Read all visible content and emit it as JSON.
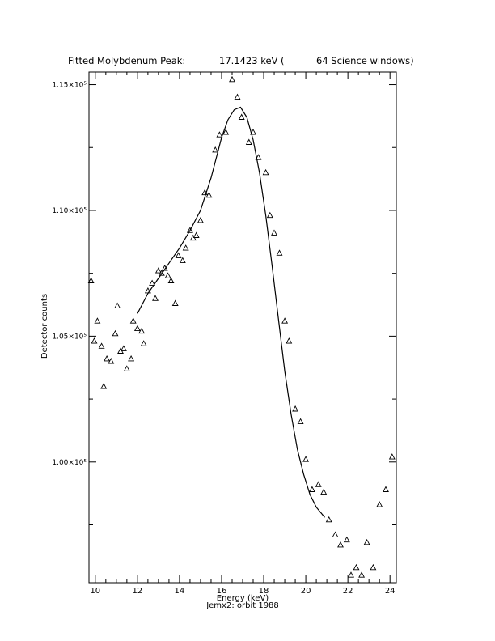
{
  "chart_data": {
    "type": "scatter",
    "title": {
      "prefix": "Fitted Molybdenum Peak:",
      "value": "17.1423 keV (",
      "suffix": "64 Science windows)"
    },
    "xlabel": "Energy (keV)",
    "ylabel": "Detector counts",
    "footer": "Jemx2: orbit 1988",
    "xlim": [
      9.7,
      24.3
    ],
    "ylim": [
      95200,
      115500
    ],
    "x_ticks": [
      10,
      12,
      14,
      16,
      18,
      20,
      22,
      24
    ],
    "x_tick_labels": [
      "10",
      "12",
      "14",
      "16",
      "18",
      "20",
      "22",
      "24"
    ],
    "y_ticks": [
      100000,
      105000,
      110000,
      115000
    ],
    "y_tick_labels": [
      "1.00×10⁵",
      "1.05×10⁵",
      "1.10×10⁵",
      "1.15×10⁵"
    ],
    "marker": "triangle-open",
    "series": [
      {
        "values_x": [
          9.8,
          9.95,
          10.1,
          10.3,
          10.4,
          10.55,
          10.75,
          10.95,
          11.05,
          11.2,
          11.35,
          11.5,
          11.7,
          11.8,
          12.0,
          12.2,
          12.3,
          12.5,
          12.7,
          12.85,
          13.0,
          13.15,
          13.3,
          13.45,
          13.6,
          13.8,
          13.95,
          14.15,
          14.3,
          14.5,
          14.65,
          14.8,
          15.0,
          15.2,
          15.4,
          15.7,
          15.9,
          16.2,
          16.5,
          16.75,
          16.95,
          17.3,
          17.5,
          17.75,
          18.1,
          18.3,
          18.5,
          18.75,
          19.0,
          19.2,
          19.5,
          19.75,
          20.0,
          20.3,
          20.6,
          20.85,
          21.1,
          21.4,
          21.65,
          21.95,
          22.15,
          22.4,
          22.65,
          22.9,
          23.2,
          23.5,
          23.8,
          24.1
        ],
        "values_y": [
          107200,
          104800,
          105600,
          104600,
          103000,
          104100,
          104000,
          105100,
          106200,
          104400,
          104500,
          103700,
          104100,
          105600,
          105300,
          105200,
          104700,
          106800,
          107100,
          106500,
          107600,
          107500,
          107700,
          107400,
          107200,
          106300,
          108200,
          108000,
          108500,
          109200,
          108900,
          109000,
          109600,
          110700,
          110600,
          112400,
          113000,
          113100,
          115200,
          114500,
          113700,
          112700,
          113100,
          112100,
          111500,
          109800,
          109100,
          108300,
          105600,
          104800,
          102100,
          101600,
          100100,
          98900,
          99100,
          98800,
          97700,
          97100,
          96700,
          96900,
          95500,
          95800,
          95500,
          96800,
          95800,
          98300,
          98900,
          100200
        ]
      }
    ],
    "fit": {
      "x": [
        12.0,
        12.5,
        13.0,
        13.5,
        14.0,
        14.5,
        15.0,
        15.5,
        16.0,
        16.3,
        16.6,
        16.9,
        17.2,
        17.5,
        17.8,
        18.1,
        18.4,
        18.7,
        19.0,
        19.3,
        19.6,
        19.9,
        20.2,
        20.5,
        20.9
      ],
      "y": [
        105900,
        106700,
        107300,
        107900,
        108500,
        109200,
        110000,
        111300,
        112900,
        113600,
        114000,
        114100,
        113700,
        112800,
        111500,
        109800,
        107800,
        105700,
        103600,
        101900,
        100500,
        99500,
        98700,
        98200,
        97800
      ]
    }
  }
}
